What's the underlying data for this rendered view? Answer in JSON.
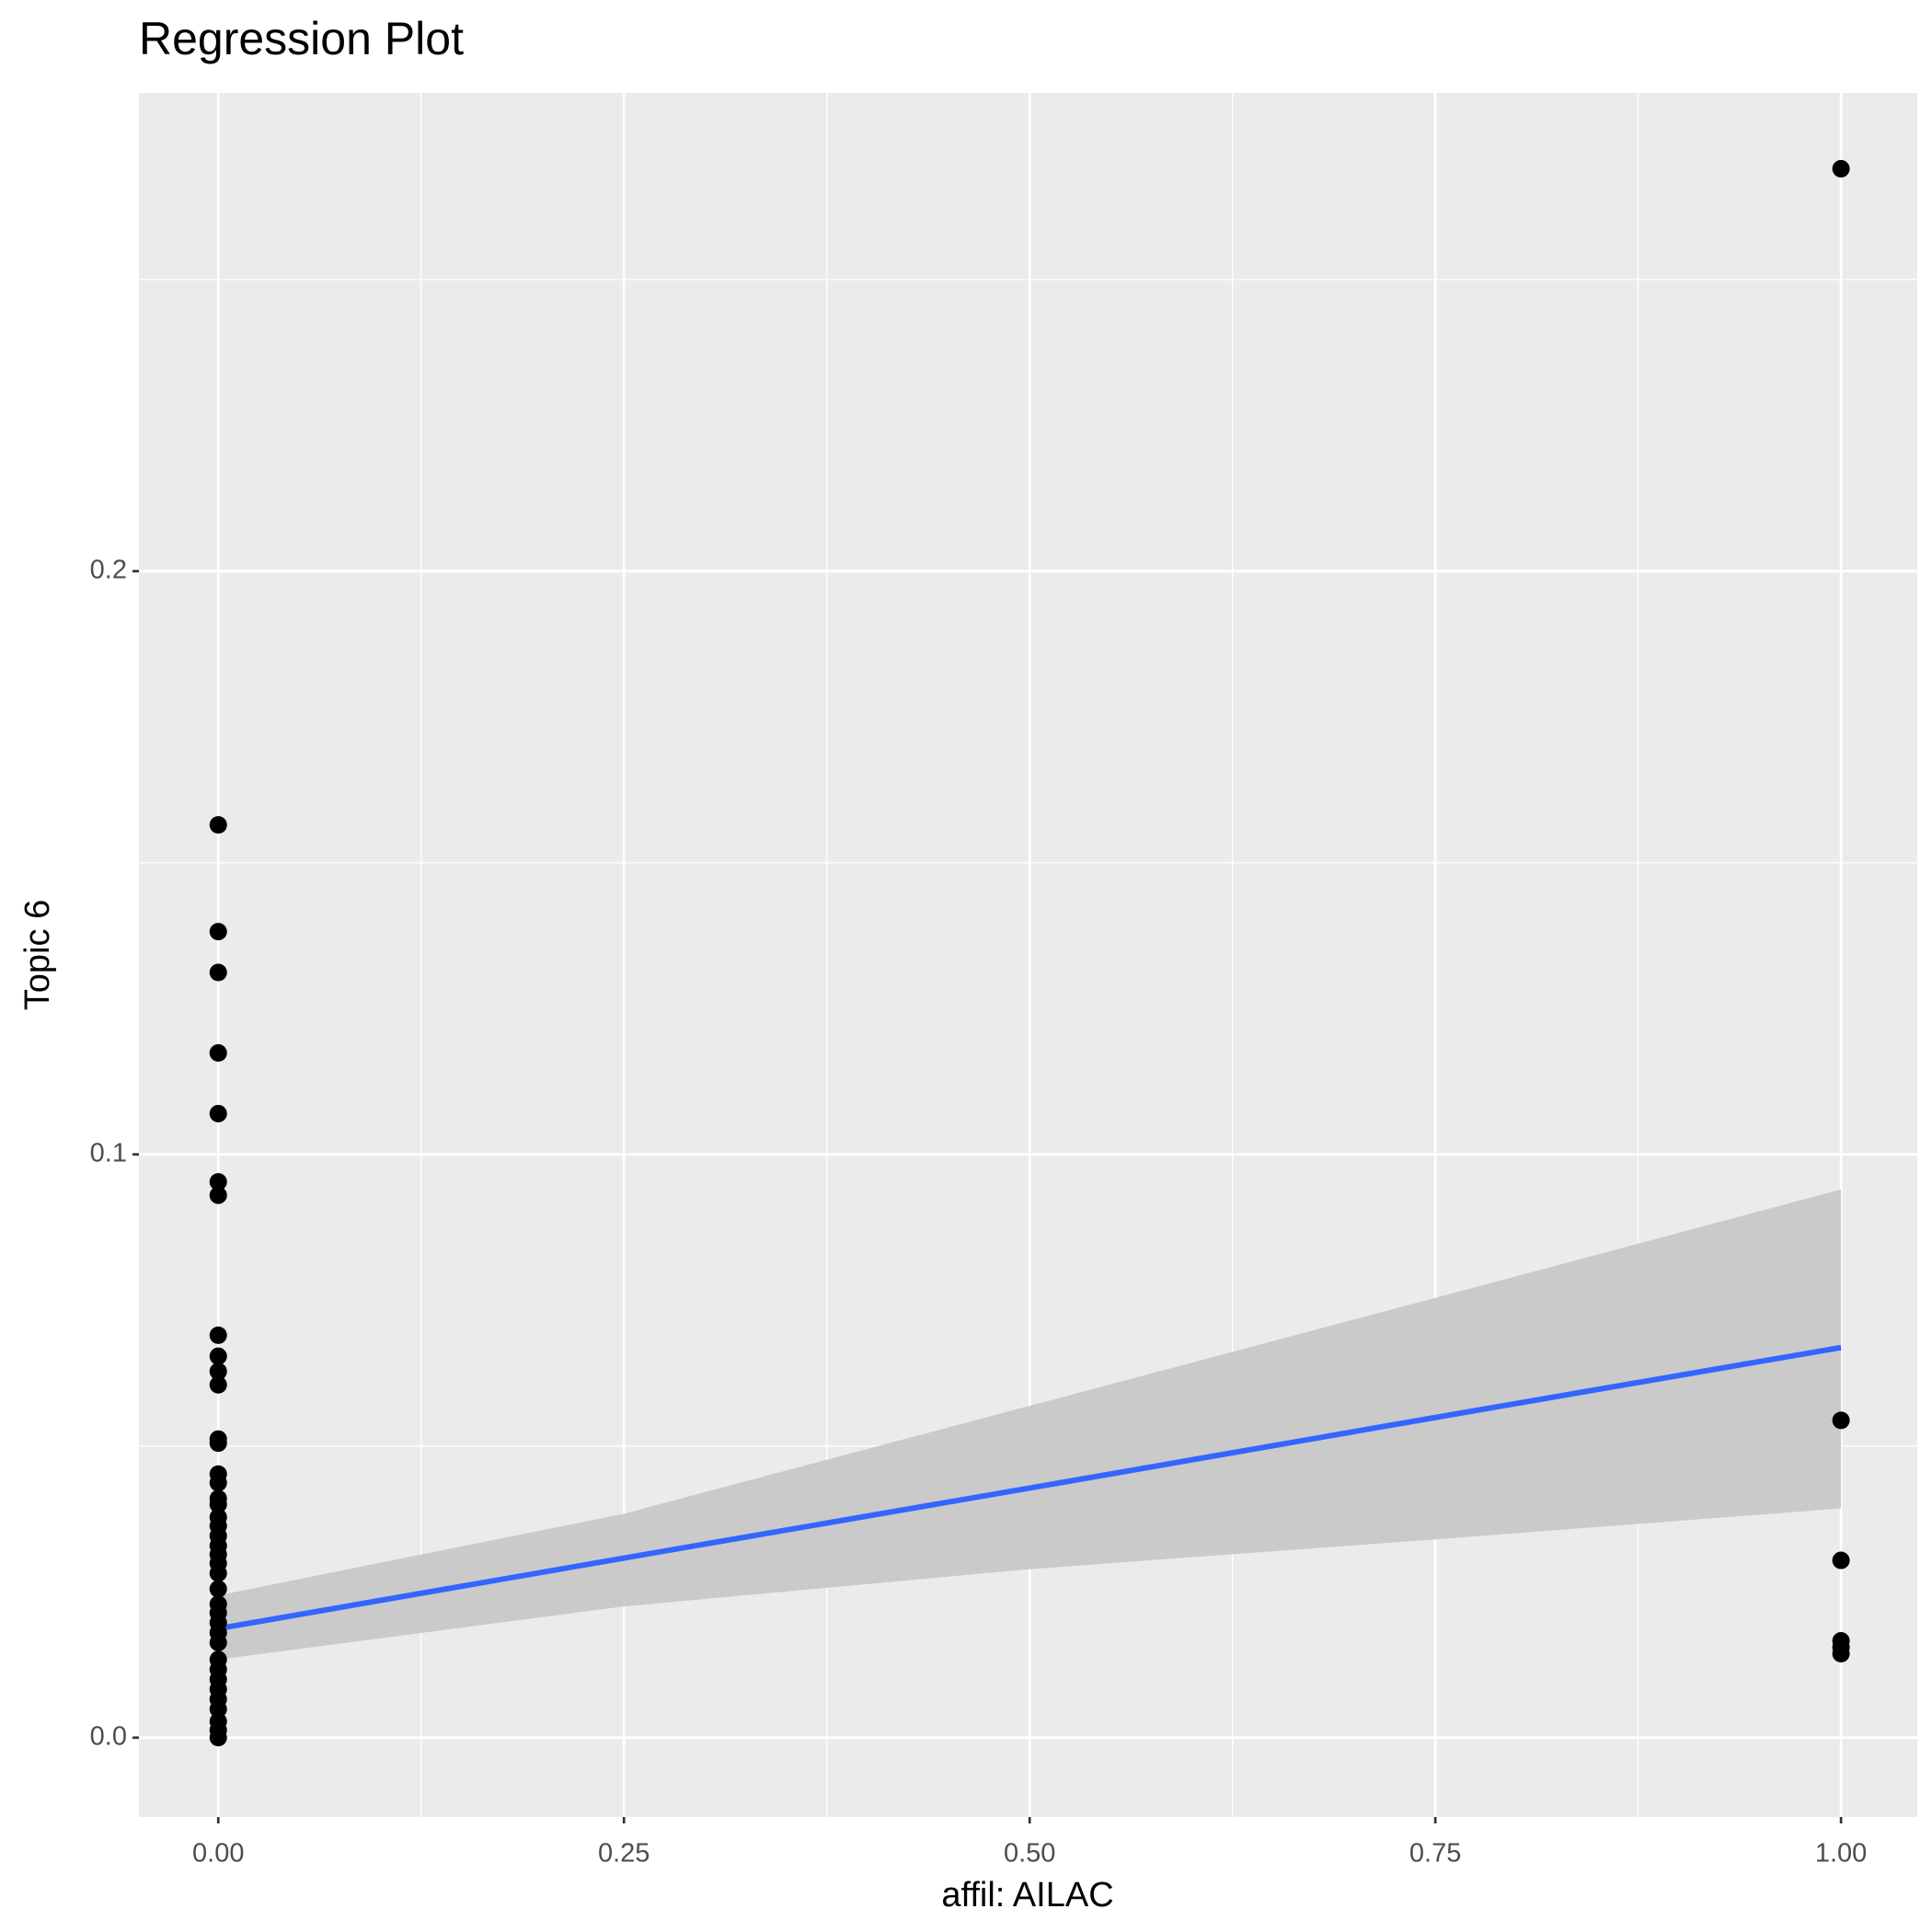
{
  "chart_data": {
    "type": "scatter",
    "title": "Regression Plot",
    "x_label": "affil: AILAC",
    "y_label": "Topic 6",
    "xlim": [
      -0.0489,
      1.047
    ],
    "ylim": [
      -0.0136,
      0.282
    ],
    "xticks": [
      {
        "value": 0,
        "label": "0.00"
      },
      {
        "value": 0.25,
        "label": "0.25"
      },
      {
        "value": 0.5,
        "label": "0.50"
      },
      {
        "value": 0.75,
        "label": "0.75"
      },
      {
        "value": 1,
        "label": "1.00"
      }
    ],
    "yticks": [
      {
        "value": 0,
        "label": "0.0"
      },
      {
        "value": 0.1,
        "label": "0.1"
      },
      {
        "value": 0.2,
        "label": "0.2"
      }
    ],
    "x_minor_ticks": [
      0.125,
      0.375,
      0.625,
      0.875
    ],
    "y_minor_ticks": [
      0.05,
      0.15,
      0.25
    ],
    "grid": true,
    "series": [
      {
        "color": "#000000",
        "x": [
          0,
          0,
          0,
          0,
          0,
          0,
          0,
          0,
          0,
          0,
          0,
          0,
          0,
          0,
          0,
          0,
          0,
          0,
          0,
          0,
          0,
          0,
          0,
          0,
          0,
          0,
          0,
          0,
          0,
          0,
          0,
          0,
          0,
          0,
          0,
          0,
          0,
          0,
          0,
          1,
          1,
          1,
          1,
          1,
          1
        ],
        "values": [
          0.1565,
          0.1382,
          0.1312,
          0.1174,
          0.107,
          0.0953,
          0.093,
          0.069,
          0.0654,
          0.0628,
          0.0605,
          0.0512,
          0.0505,
          0.0452,
          0.0437,
          0.041,
          0.04,
          0.0378,
          0.0363,
          0.0346,
          0.0329,
          0.0314,
          0.0299,
          0.0282,
          0.0255,
          0.0229,
          0.0214,
          0.0197,
          0.018,
          0.0163,
          0.0134,
          0.0117,
          0.01,
          0.0083,
          0.0066,
          0.0049,
          0.0028,
          0.0013,
          0,
          0.269,
          0.0544,
          0.0304,
          0.0166,
          0.0155,
          0.0144
        ]
      }
    ],
    "fit": {
      "color": "#3366ff",
      "fill": "#c8c8c8",
      "x": [
        0,
        0.25,
        0.5,
        0.75,
        1
      ],
      "values": [
        0.0187,
        0.0308,
        0.0428,
        0.0549,
        0.0669
      ],
      "lower": [
        0.0134,
        0.0225,
        0.0289,
        0.034,
        0.0393
      ],
      "upper": [
        0.0244,
        0.0384,
        0.0569,
        0.0754,
        0.094
      ]
    }
  }
}
